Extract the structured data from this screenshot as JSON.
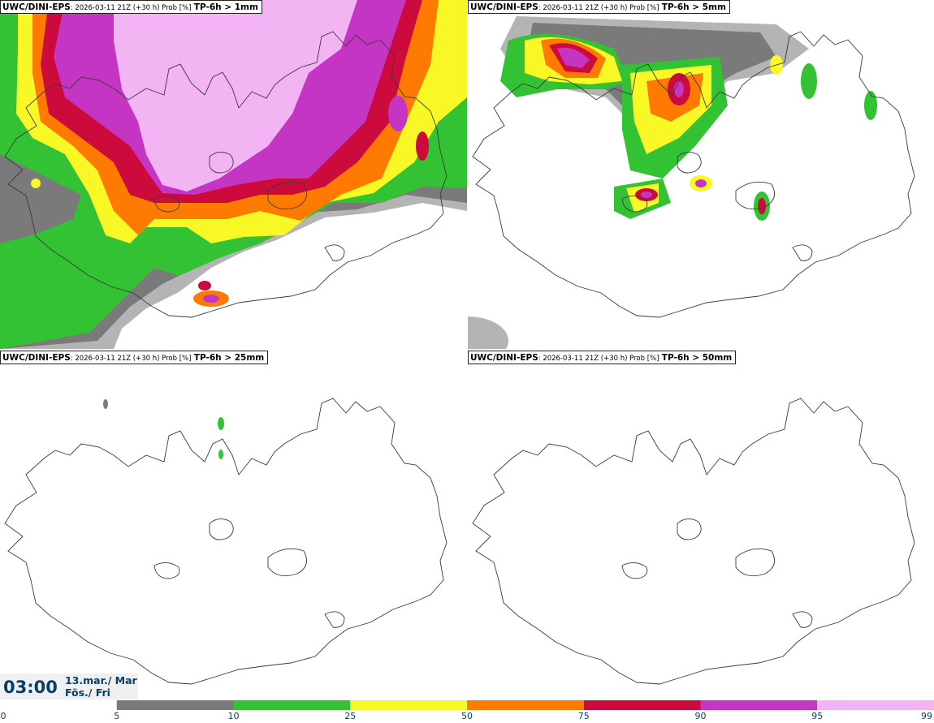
{
  "panels": [
    {
      "model": "UWC/DINI-EPS",
      "meta": ": 2026-03-11 21Z (+30 h) Prob [%]",
      "threshold": "TP-6h > 1mm"
    },
    {
      "model": "UWC/DINI-EPS",
      "meta": ": 2026-03-11 21Z (+30 h) Prob [%]",
      "threshold": "TP-6h > 5mm"
    },
    {
      "model": "UWC/DINI-EPS",
      "meta": ": 2026-03-11 21Z (+30 h) Prob [%]",
      "threshold": "TP-6h > 25mm"
    },
    {
      "model": "UWC/DINI-EPS",
      "meta": ": 2026-03-11 21Z (+30 h) Prob [%]",
      "threshold": "TP-6h > 50mm"
    }
  ],
  "time": {
    "clock": "03:00",
    "date_line1": "13.mar./ Mar",
    "date_line2": "Fös./ Fri"
  },
  "colorbar": {
    "ticks": [
      "0",
      "5",
      "10",
      "25",
      "50",
      "75",
      "90",
      "95",
      "99"
    ],
    "colors": [
      "#ffffff",
      "#b4b4b4",
      "#7a7a7a",
      "#33c233",
      "#f8f826",
      "#ff7a00",
      "#cc0a3c",
      "#c435c4",
      "#f2b4f2"
    ]
  }
}
